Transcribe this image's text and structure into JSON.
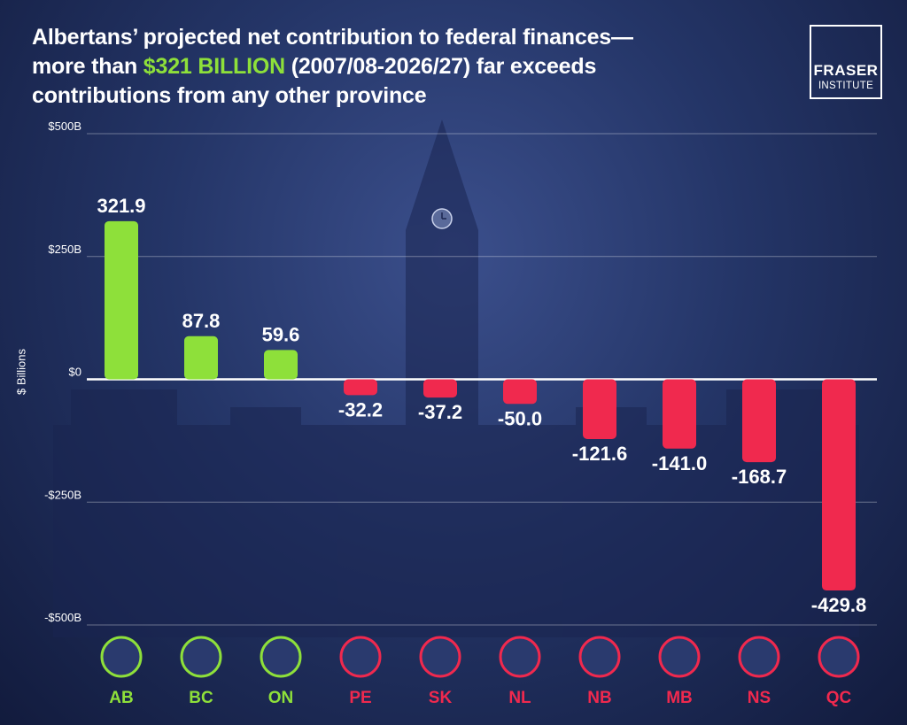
{
  "title": {
    "line1": "Albertans’ projected net contribution to federal finances—",
    "line2_pre": "more than ",
    "line2_highlight": "$321 BILLION",
    "line2_post": " (2007/08-2026/27) far exceeds",
    "line3": "contributions from any other province"
  },
  "logo": {
    "line1": "FRASER",
    "line2": "INSTITUTE"
  },
  "colors": {
    "positive": "#8ee03a",
    "negative": "#f0294e",
    "highlight": "#8ee03a",
    "axis_text": "#ffffff"
  },
  "chart_data": {
    "type": "bar",
    "ylabel": "$ Billions",
    "ylim": [
      -500,
      500
    ],
    "yticks": [
      {
        "value": 500,
        "label": "$500B"
      },
      {
        "value": 250,
        "label": "$250B"
      },
      {
        "value": 0,
        "label": "$0"
      },
      {
        "value": -250,
        "label": "-$250B"
      },
      {
        "value": -500,
        "label": "-$500B"
      }
    ],
    "grid": true,
    "categories": [
      "AB",
      "BC",
      "ON",
      "PE",
      "SK",
      "NL",
      "NB",
      "MB",
      "NS",
      "QC"
    ],
    "values": [
      321.9,
      87.8,
      59.6,
      -32.2,
      -37.2,
      -50.0,
      -121.6,
      -141.0,
      -168.7,
      -429.8
    ],
    "labels": [
      "321.9",
      "87.8",
      "59.6",
      "-32.2",
      "-37.2",
      "-50.0",
      "-121.6",
      "-141.0",
      "-168.7",
      "-429.8"
    ]
  }
}
